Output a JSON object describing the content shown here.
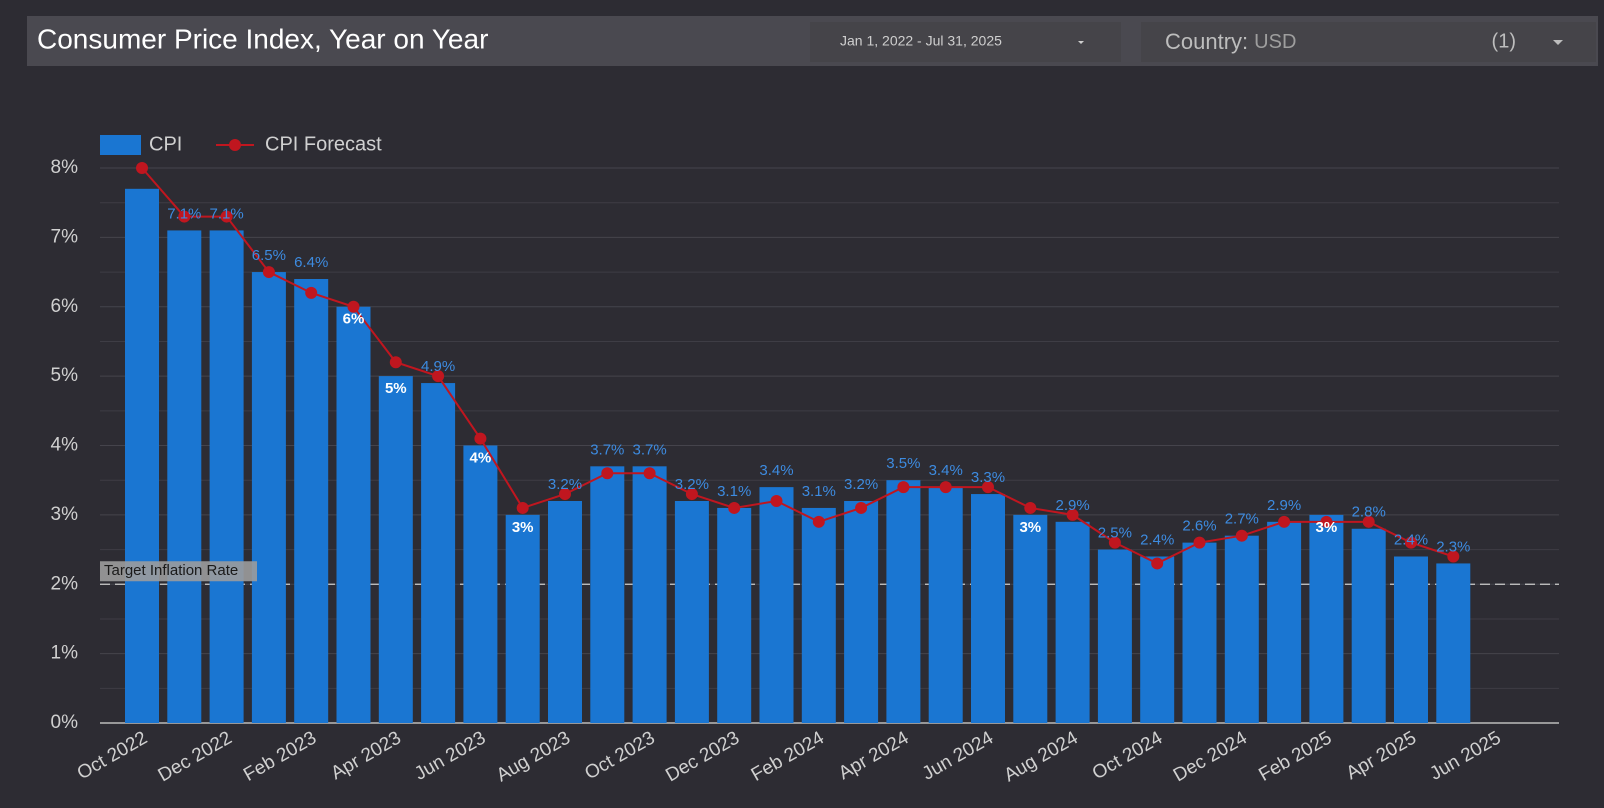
{
  "header": {
    "title": "Consumer Price Index, Year on Year",
    "date_range": "Jan 1, 2022 - Jul 31, 2025",
    "country_label": "Country:",
    "country_value": "USD",
    "count": "(1)"
  },
  "chart_data": {
    "type": "bar",
    "categories": [
      "Oct 2022",
      null,
      "Dec 2022",
      null,
      "Feb 2023",
      null,
      "Apr 2023",
      null,
      "Jun 2023",
      null,
      "Aug 2023",
      null,
      "Oct 2023",
      null,
      "Dec 2023",
      null,
      "Feb 2024",
      null,
      "Apr 2024",
      null,
      "Jun 2024",
      null,
      "Aug 2024",
      null,
      "Oct 2024",
      null,
      "Dec 2024",
      null,
      "Feb 2025",
      null,
      "Apr 2025",
      null,
      "Jun 2025"
    ],
    "series": [
      {
        "name": "CPI",
        "type": "bar",
        "color": "#1a76d2",
        "values": [
          7.7,
          7.1,
          7.1,
          6.5,
          6.4,
          6,
          5,
          4.9,
          4,
          3,
          3.2,
          3.7,
          3.7,
          3.2,
          3.1,
          3.4,
          3.1,
          3.2,
          3.5,
          3.4,
          3.3,
          3,
          2.9,
          2.5,
          2.4,
          2.6,
          2.7,
          2.9,
          3,
          2.8,
          2.4,
          2.3,
          null
        ],
        "value_labels": [
          null,
          "7.1%",
          "7.1%",
          "6.5%",
          "6.4%",
          "6%",
          "5%",
          "4.9%",
          "4%",
          "3%",
          "3.2%",
          "3.7%",
          "3.7%",
          "3.2%",
          "3.1%",
          "3.4%",
          "3.1%",
          "3.2%",
          "3.5%",
          "3.4%",
          "3.3%",
          "3%",
          "2.9%",
          "2.5%",
          "2.4%",
          "2.6%",
          "2.7%",
          "2.9%",
          "3%",
          "2.8%",
          "2.4%",
          "2.3%",
          null
        ]
      },
      {
        "name": "CPI Forecast",
        "type": "line",
        "color": "#c0161f",
        "values": [
          8,
          7.3,
          7.3,
          6.5,
          6.2,
          6,
          5.2,
          5,
          4.1,
          3.1,
          3.3,
          3.6,
          3.6,
          3.3,
          3.1,
          3.2,
          2.9,
          3.1,
          3.4,
          3.4,
          3.4,
          3.1,
          3,
          2.6,
          2.3,
          2.6,
          2.7,
          2.9,
          2.9,
          2.9,
          2.6,
          2.4,
          null
        ]
      }
    ],
    "ylim": [
      0,
      8
    ],
    "yticks": [
      {
        "value": 0,
        "label": "0%"
      },
      {
        "value": 1,
        "label": "1%"
      },
      {
        "value": 2,
        "label": "2%"
      },
      {
        "value": 3,
        "label": "3%"
      },
      {
        "value": 4,
        "label": "4%"
      },
      {
        "value": 5,
        "label": "5%"
      },
      {
        "value": 6,
        "label": "6%"
      },
      {
        "value": 7,
        "label": "7%"
      },
      {
        "value": 8,
        "label": "8%"
      }
    ],
    "minor_yticks": [
      0.5,
      1.5,
      2.5,
      3.5,
      4.5,
      5.5,
      6.5,
      7.5
    ],
    "grid": true,
    "reference_line": {
      "value": 2,
      "label": "Target Inflation Rate"
    }
  }
}
